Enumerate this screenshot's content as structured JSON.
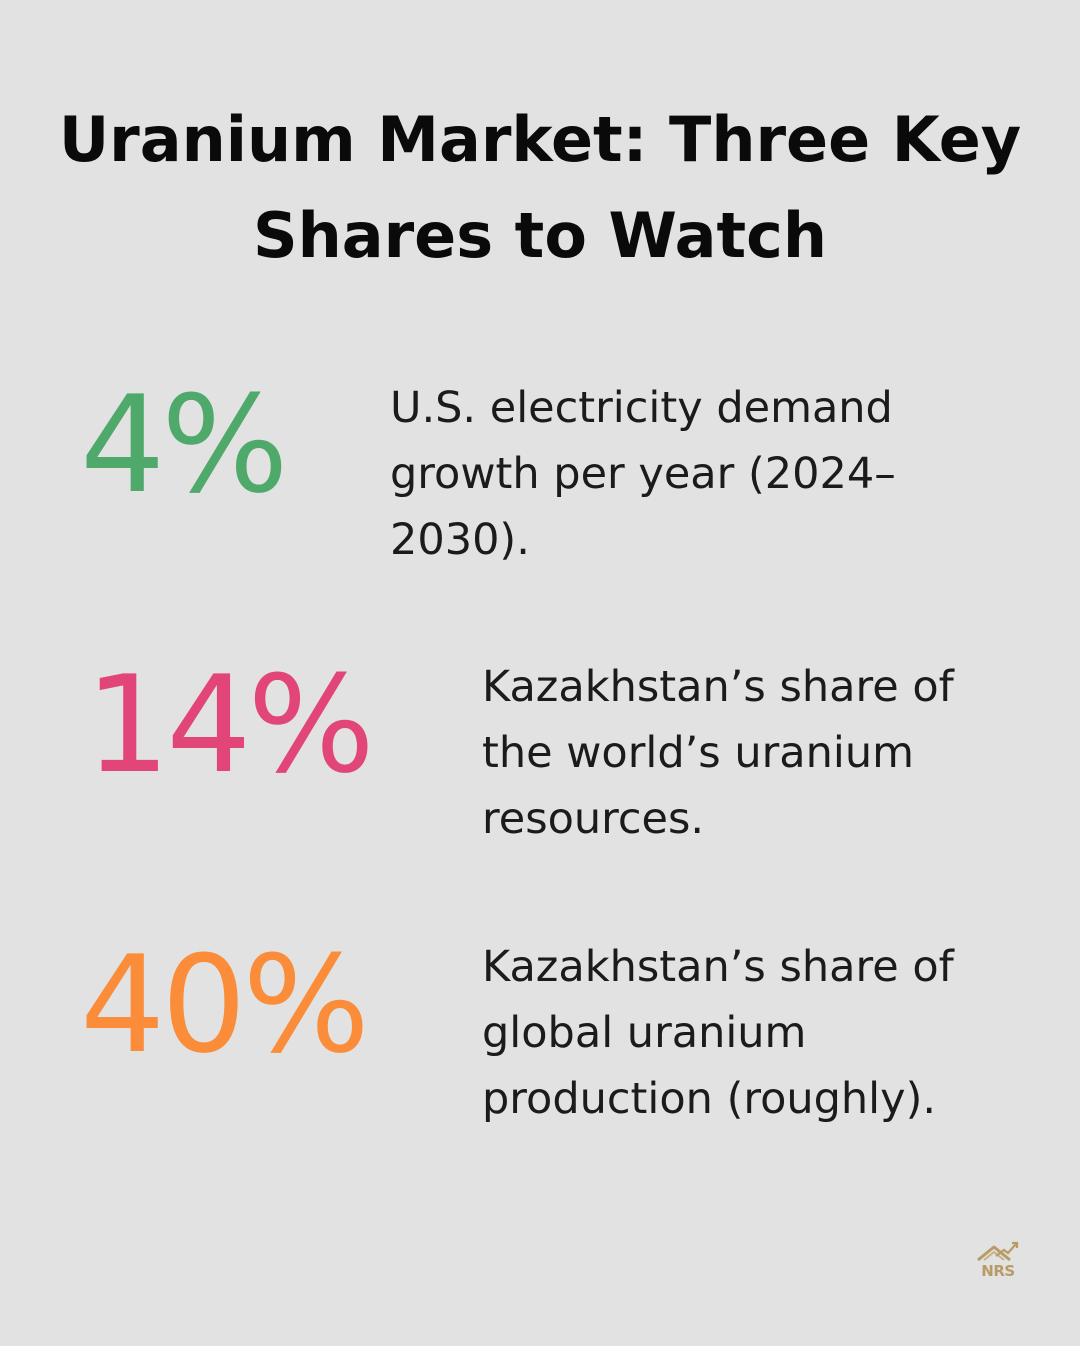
{
  "title": "Uranium Market: Three Key Shares to Watch",
  "stats": [
    {
      "value": "4%",
      "description": "U.S. electricity demand growth per year (2024–2030).",
      "color": "#4ea96a"
    },
    {
      "value": "14%",
      "description": "Kazakhstan’s share of the world’s uranium resources.",
      "color": "#e24577"
    },
    {
      "value": "40%",
      "description": "Kazakhstan’s share of global uranium production (roughly).",
      "color": "#fa8c3a"
    }
  ],
  "logo": {
    "text": "NRS",
    "icon": "house-chart-icon",
    "color": "#b79c66"
  }
}
